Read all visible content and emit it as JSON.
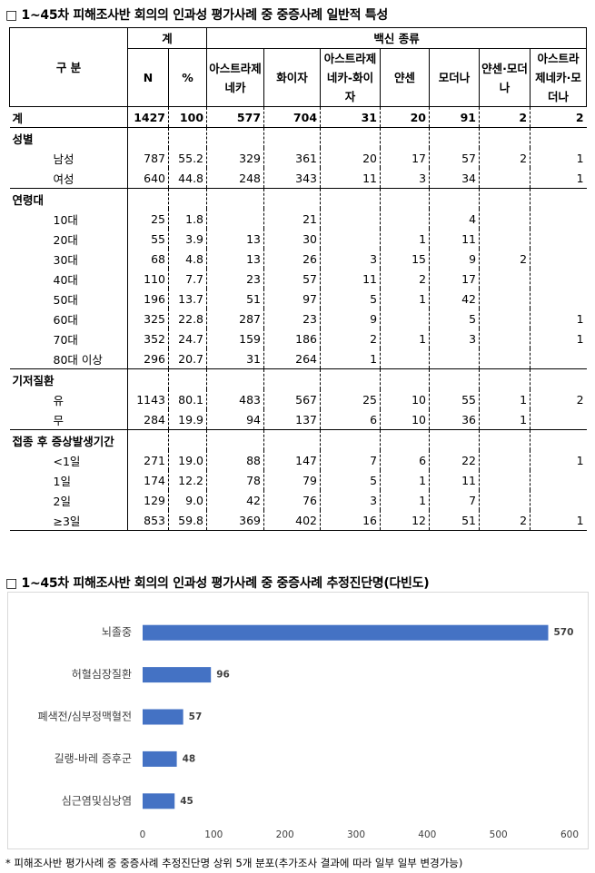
{
  "table_title": "□ 1~45차 피해조사반 회의의 인과성 평가사례 중 중증사례 일반적 특성",
  "table": {
    "header": {
      "group_label": "구 분",
      "total": "계",
      "vaccine": "백신 종류",
      "columns": [
        "N",
        "%",
        "아스트라제네카",
        "화이자",
        "아스트라제네카-화이자",
        "얀센",
        "모더나",
        "얀센·모더나",
        "아스트라제네카·모더나"
      ]
    },
    "rows": [
      [
        "계",
        1427,
        100,
        577,
        704,
        31,
        20,
        91,
        2,
        2
      ],
      [
        "성별"
      ],
      [
        "남성",
        787,
        55.2,
        329,
        361,
        20,
        17,
        57,
        2,
        1
      ],
      [
        "여성",
        640,
        44.8,
        248,
        343,
        11,
        3,
        34,
        null,
        1
      ],
      [
        "연령대"
      ],
      [
        "10대",
        25,
        1.8,
        null,
        21,
        null,
        null,
        4,
        null,
        null
      ],
      [
        "20대",
        55,
        3.9,
        13,
        30,
        null,
        1,
        11,
        null,
        null
      ],
      [
        "30대",
        68,
        4.8,
        13,
        26,
        3,
        15,
        9,
        2,
        null
      ],
      [
        "40대",
        110,
        7.7,
        23,
        57,
        11,
        2,
        17,
        null,
        null
      ],
      [
        "50대",
        196,
        13.7,
        51,
        97,
        5,
        1,
        42,
        null,
        null
      ],
      [
        "60대",
        325,
        22.8,
        287,
        23,
        9,
        null,
        5,
        null,
        1
      ],
      [
        "70대",
        352,
        24.7,
        159,
        186,
        2,
        1,
        3,
        null,
        1
      ],
      [
        "80대 이상",
        296,
        20.7,
        31,
        264,
        1,
        null,
        null,
        null,
        null
      ],
      [
        "기저질환"
      ],
      [
        "유",
        1143,
        80.1,
        483,
        567,
        25,
        10,
        55,
        1,
        2
      ],
      [
        "무",
        284,
        19.9,
        94,
        137,
        6,
        10,
        36,
        1,
        null
      ],
      [
        "접종 후 증상발생기간"
      ],
      [
        "<1일",
        271,
        "19.0",
        88,
        147,
        7,
        6,
        22,
        null,
        1
      ],
      [
        "1일",
        174,
        12.2,
        78,
        79,
        5,
        1,
        11,
        null,
        null
      ],
      [
        "2일",
        129,
        "9.0",
        42,
        76,
        3,
        1,
        7,
        null,
        null
      ],
      [
        "≥3일",
        853,
        59.8,
        369,
        402,
        16,
        12,
        51,
        2,
        1
      ]
    ]
  },
  "chart_title": "□ 1~45차 피해조사반 회의의 인과성 평가사례 중 중증사례 추정진단명(다빈도)",
  "chart_data": {
    "type": "bar",
    "orientation": "horizontal",
    "categories": [
      "뇌졸중",
      "허혈심장질환",
      "폐색전/심부정맥혈전",
      "길랭-바레 증후군",
      "심근염및심낭염"
    ],
    "values": [
      570,
      96,
      57,
      48,
      45
    ],
    "color": "#4472c4",
    "xlim": [
      0,
      600
    ],
    "xticks": [
      0,
      100,
      200,
      300,
      400,
      500,
      600
    ],
    "grid": false
  },
  "footnote": "* 피해조사반 평가사례 중 중증사례 추정진단명 상위 5개 분포(추가조사 결과에 따라 일부 일부 변경가능)"
}
